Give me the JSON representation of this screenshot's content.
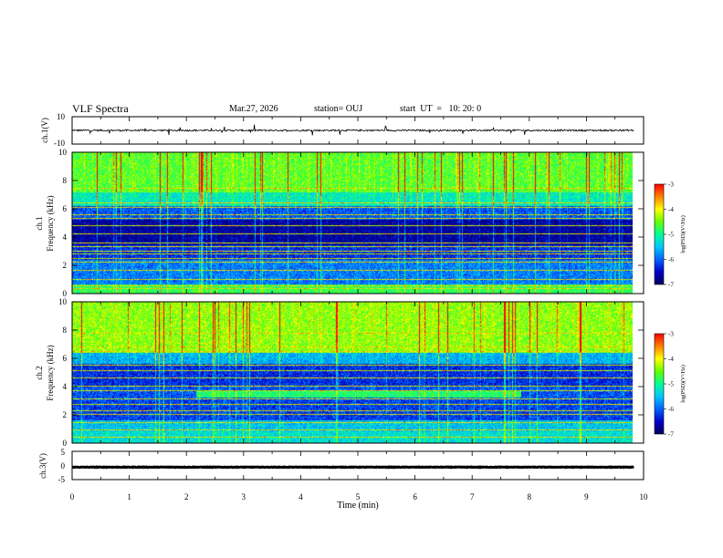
{
  "header": {
    "title": "VLF Spectra",
    "date": "Mar.27, 2026",
    "station": "station= OUJ",
    "start_ut": "start  UT  =   10: 20: 0"
  },
  "colors": {
    "stops": [
      "#000060",
      "#0000c8",
      "#0064ff",
      "#00c8ff",
      "#00ff96",
      "#64ff00",
      "#ffff00",
      "#ff8000",
      "#ff0000",
      "#ffffff"
    ],
    "trace": "#000000",
    "line": "#000000"
  },
  "chart_data": [
    {
      "type": "line",
      "name": "ch1-waveform",
      "ylabel": "ch.1(V)",
      "ylim": [
        -10,
        10
      ],
      "yticks": [
        "10",
        "-10"
      ],
      "baseline": 0,
      "noise_amplitude": 1.2
    },
    {
      "type": "heatmap",
      "name": "ch1-spectrogram",
      "ylabel_top": "ch.1",
      "ylabel": "Frequency  (kHz)",
      "ylim": [
        0,
        10
      ],
      "yticks": [
        "0",
        "2",
        "4",
        "6",
        "8",
        "10"
      ],
      "xlim": [
        0,
        10
      ],
      "colorbar": {
        "label": "log(PSD)(V²/Hz)",
        "range": [
          -7,
          -3
        ],
        "ticks": [
          "-3",
          "-4",
          "-5",
          "-6",
          "-7"
        ]
      },
      "bands": [
        {
          "fmin": 0,
          "fmax": 0.6,
          "level": -4.8
        },
        {
          "fmin": 0.6,
          "fmax": 2.4,
          "level": -5.9
        },
        {
          "fmin": 2.4,
          "fmax": 3.4,
          "level": -6.3
        },
        {
          "fmin": 3.4,
          "fmax": 5.2,
          "level": -6.7
        },
        {
          "fmin": 5.2,
          "fmax": 6.2,
          "level": -6.1
        },
        {
          "fmin": 6.2,
          "fmax": 7.2,
          "level": -5.2
        },
        {
          "fmin": 7.2,
          "fmax": 10,
          "level": -4.6
        }
      ],
      "lines_khz": [
        0.3,
        0.5,
        1.0,
        1.6,
        2.2,
        2.5,
        2.8,
        3.0,
        3.3,
        3.6,
        4.2,
        4.8,
        5.3,
        5.6,
        6.1,
        6.4,
        7.5
      ],
      "features": []
    },
    {
      "type": "heatmap",
      "name": "ch2-spectrogram",
      "ylabel_top": "ch.2",
      "ylabel": "Frequency  (kHz)",
      "ylim": [
        0,
        10
      ],
      "yticks": [
        "0",
        "2",
        "4",
        "6",
        "8",
        "10"
      ],
      "xlim": [
        0,
        10
      ],
      "colorbar": {
        "label": "log(PSD)(V²/Hz)",
        "range": [
          -7,
          -3
        ],
        "ticks": [
          "-3",
          "-4",
          "-5",
          "-6",
          "-7"
        ]
      },
      "bands": [
        {
          "fmin": 0,
          "fmax": 0.8,
          "level": -5.3
        },
        {
          "fmin": 0.8,
          "fmax": 1.6,
          "level": -5.5
        },
        {
          "fmin": 1.6,
          "fmax": 3.0,
          "level": -6.2
        },
        {
          "fmin": 3.0,
          "fmax": 4.0,
          "level": -6.1
        },
        {
          "fmin": 4.0,
          "fmax": 5.6,
          "level": -6.3
        },
        {
          "fmin": 5.6,
          "fmax": 6.4,
          "level": -5.6
        },
        {
          "fmin": 6.4,
          "fmax": 10,
          "level": -4.4
        }
      ],
      "lines_khz": [
        0.4,
        0.9,
        1.4,
        2.0,
        2.3,
        2.7,
        3.1,
        3.7,
        4.0,
        4.6,
        5.1,
        5.5,
        6.5,
        6.8,
        7.8
      ],
      "features": [
        {
          "tmin": 2.2,
          "tmax": 8.0,
          "fmin": 3.2,
          "fmax": 3.7,
          "level": -4.9
        }
      ]
    },
    {
      "type": "line",
      "name": "ch3-waveform",
      "ylabel": "ch.3(V)",
      "ylim": [
        -5,
        5
      ],
      "yticks": [
        "5",
        "0",
        "-5"
      ],
      "baseline": -0.6,
      "noise_amplitude": 0.2
    }
  ],
  "xaxis": {
    "label": "Time  (min)",
    "range": [
      0,
      10
    ],
    "ticks": [
      "0",
      "1",
      "2",
      "3",
      "4",
      "5",
      "6",
      "7",
      "8",
      "9",
      "10"
    ],
    "data_end": 9.83
  }
}
